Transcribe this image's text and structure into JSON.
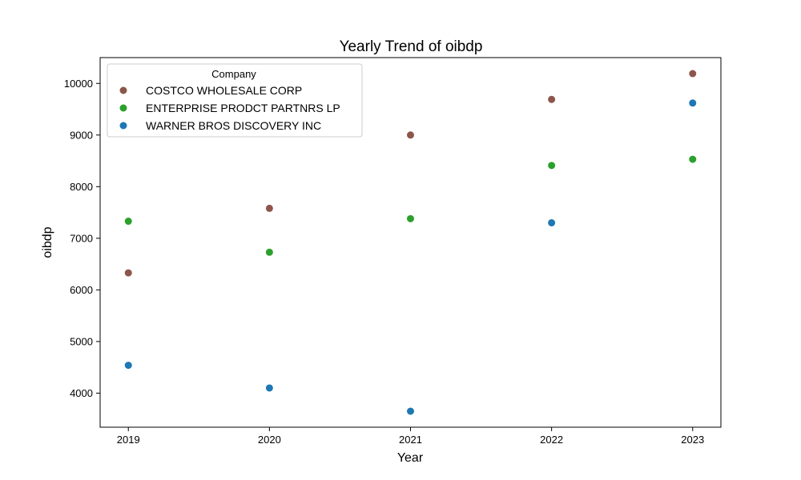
{
  "chart_data": {
    "type": "scatter",
    "title": "Yearly Trend of oibdp",
    "xlabel": "Year",
    "ylabel": "oibdp",
    "categories": [
      "2019",
      "2020",
      "2021",
      "2022",
      "2023"
    ],
    "xlim": [
      2018.8,
      2023.2
    ],
    "ylim": [
      3340,
      10500
    ],
    "yticks": [
      "4000",
      "5000",
      "6000",
      "7000",
      "8000",
      "9000",
      "10000"
    ],
    "grid": false,
    "legend": {
      "title": "Company",
      "placement": "top-left"
    },
    "series": [
      {
        "name": "COSTCO WHOLESALE CORP",
        "color": "#8c564b",
        "x": [
          2019,
          2020,
          2021,
          2022,
          2023
        ],
        "values": [
          6330,
          7580,
          9000,
          9690,
          10190
        ]
      },
      {
        "name": "ENTERPRISE PRODCT PARTNRS LP",
        "color": "#2ca02c",
        "x": [
          2019,
          2020,
          2021,
          2022,
          2023
        ],
        "values": [
          7330,
          6730,
          7380,
          8410,
          8530
        ]
      },
      {
        "name": "WARNER BROS DISCOVERY INC",
        "color": "#1f77b4",
        "x": [
          2019,
          2020,
          2021,
          2022,
          2023
        ],
        "values": [
          4540,
          4100,
          3650,
          7300,
          9620
        ]
      }
    ]
  }
}
